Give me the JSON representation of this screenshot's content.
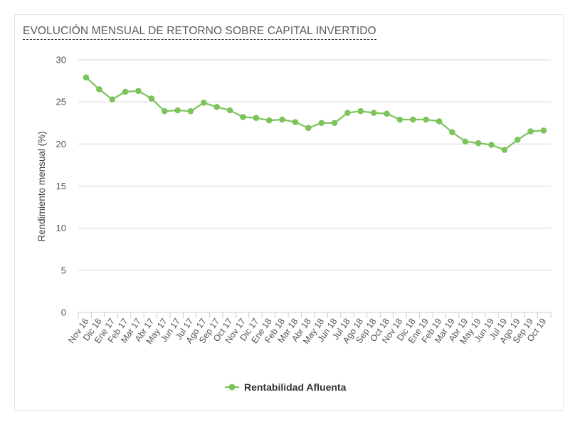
{
  "chart_data": {
    "type": "line",
    "title": "EVOLUCIÓN MENSUAL DE RETORNO SOBRE CAPITAL INVERTIDO",
    "xlabel": "",
    "ylabel": "Rendimiento mensual (%)",
    "ylim": [
      0,
      30
    ],
    "yticks": [
      "0",
      "5",
      "10",
      "15",
      "20",
      "25",
      "30"
    ],
    "grid": true,
    "legend_position": "bottom",
    "color": "#7dc35b",
    "categories": [
      "Nov 16",
      "Dic 16",
      "Ene 17",
      "Feb 17",
      "Mar 17",
      "Abr 17",
      "May 17",
      "Jun 17",
      "Jul 17",
      "Ago 17",
      "Sep 17",
      "Oct 17",
      "Nov 17",
      "Dic 17",
      "Ene 18",
      "Feb 18",
      "Mar 18",
      "Abr 18",
      "May 18",
      "Jun 18",
      "Jul 18",
      "Ago 18",
      "Sep 18",
      "Oct 18",
      "Nov 18",
      "Dic 18",
      "Ene 19",
      "Feb 19",
      "Mar 19",
      "Abr 19",
      "May 19",
      "Jun 19",
      "Jul 19",
      "Ago 19",
      "Sep 19",
      "Oct 19"
    ],
    "series": [
      {
        "name": "Rentabilidad Afluenta",
        "values": [
          27.9,
          26.5,
          25.3,
          26.2,
          26.3,
          25.4,
          23.9,
          24.0,
          23.9,
          24.9,
          24.4,
          24.0,
          23.2,
          23.1,
          22.8,
          22.9,
          22.6,
          21.9,
          22.5,
          22.5,
          23.7,
          23.9,
          23.7,
          23.6,
          22.9,
          22.9,
          22.9,
          22.7,
          21.4,
          20.3,
          20.1,
          19.9,
          19.3,
          20.5,
          21.5,
          21.6
        ]
      }
    ]
  }
}
